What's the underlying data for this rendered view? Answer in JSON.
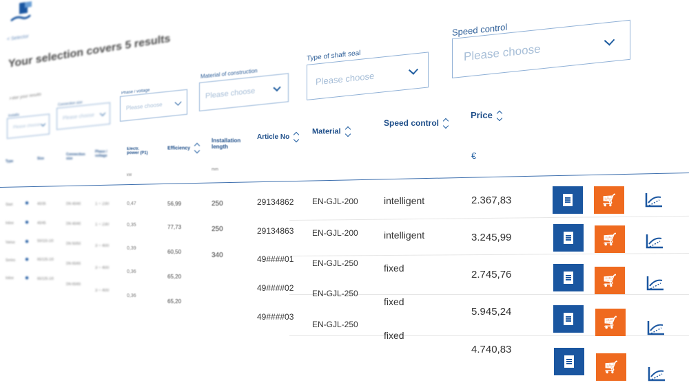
{
  "page": {
    "results_heading": "Your selection covers 5 results",
    "back_link": "< Selector",
    "filters_subtitle": "Filter your results"
  },
  "filters": [
    {
      "label": "Installa",
      "placeholder": "Please choose"
    },
    {
      "label": "Connection size",
      "placeholder": "Please choose"
    },
    {
      "label": "Phase / voltage",
      "placeholder": "Please choose"
    },
    {
      "label": "Material of construction",
      "placeholder": "Please choose"
    },
    {
      "label": "Type of shaft seal",
      "placeholder": "Please choose"
    },
    {
      "label": "Speed control",
      "placeholder": "Please choose"
    }
  ],
  "columns": {
    "type": "Type",
    "size": "Size",
    "connection": "Connection size",
    "phase": "Phase / voltage",
    "power": "Electr. power (P1)",
    "power_unit": "kW",
    "efficiency": "Efficiency",
    "install_length": "Installation length",
    "install_unit": "mm",
    "article": "Article No",
    "material": "Material",
    "speed": "Speed control",
    "price": "Price",
    "currency": "€"
  },
  "rows": [
    {
      "type": "Start",
      "size": "40/35",
      "connection": "DN 40/40",
      "phase": "1 ~ 230",
      "power": "0,47",
      "efficiency": "56,99",
      "install": "250",
      "article": "29134862",
      "material": "EN-GJL-200",
      "speed": "intelligent",
      "price": "2.367,83"
    },
    {
      "type": "Inline",
      "size": "40/45",
      "connection": "DN 40/40",
      "phase": "1 ~ 230",
      "power": "0,35",
      "efficiency": "77,73",
      "install": "250",
      "article": "29134863",
      "material": "EN-GJL-200",
      "speed": "intelligent",
      "price": "3.245,99"
    },
    {
      "type": "Varius",
      "size": "50/115-1/0",
      "connection": "DN 50/50",
      "phase": "3 ~ 400",
      "power": "0,39",
      "efficiency": "60,50",
      "install": "340",
      "article": "49####01",
      "material": "EN-GJL-250",
      "speed": "fixed",
      "price": "2.745,76"
    },
    {
      "type": "Series",
      "size": "65/125-1/0",
      "connection": "DN 65/65",
      "phase": "3 ~ 400",
      "power": "0,36",
      "efficiency": "65,20",
      "install": "",
      "article": "49####02",
      "material": "EN-GJL-250",
      "speed": "fixed",
      "price": "5.945,24"
    },
    {
      "type": "Inline",
      "size": "65/125-1/0",
      "connection": "DN 65/65",
      "phase": "3 ~ 400",
      "power": "0,36",
      "efficiency": "65,20",
      "install": "",
      "article": "49####03",
      "material": "EN-GJL-250",
      "speed": "fixed",
      "price": "4.740,83"
    }
  ],
  "icons": {
    "datasheet": "document-icon",
    "cart": "cart-icon",
    "curve": "pump-curve-icon"
  },
  "colors": {
    "primary_blue": "#1a56a0",
    "accent_orange": "#ef6a1f",
    "label_blue": "#2d5e98",
    "border_blue": "#8fb0d6"
  }
}
